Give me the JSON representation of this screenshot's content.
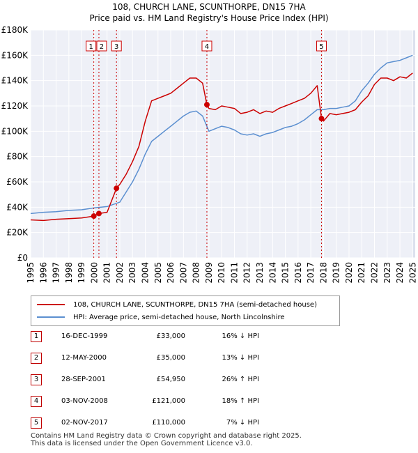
{
  "chart_data": {
    "type": "line",
    "title": "108, CHURCH LANE, SCUNTHORPE, DN15 7HA",
    "subtitle": "Price paid vs. HM Land Registry's House Price Index (HPI)",
    "xlabel": "",
    "ylabel": "",
    "xlim": [
      1995,
      2025.2
    ],
    "ylim": [
      0,
      180000
    ],
    "x_ticks": [
      1995,
      1996,
      1997,
      1998,
      1999,
      2000,
      2001,
      2002,
      2003,
      2004,
      2005,
      2006,
      2007,
      2008,
      2009,
      2010,
      2011,
      2012,
      2013,
      2014,
      2015,
      2016,
      2017,
      2018,
      2019,
      2020,
      2021,
      2022,
      2023,
      2024,
      2025
    ],
    "y_ticks": [
      {
        "value": 0,
        "label": "£0"
      },
      {
        "value": 20000,
        "label": "£20K"
      },
      {
        "value": 40000,
        "label": "£40K"
      },
      {
        "value": 60000,
        "label": "£60K"
      },
      {
        "value": 80000,
        "label": "£80K"
      },
      {
        "value": 100000,
        "label": "£100K"
      },
      {
        "value": 120000,
        "label": "£120K"
      },
      {
        "value": 140000,
        "label": "£140K"
      },
      {
        "value": 160000,
        "label": "£160K"
      },
      {
        "value": 180000,
        "label": "£180K"
      }
    ],
    "grid": true,
    "series": [
      {
        "name": "108, CHURCH LANE, SCUNTHORPE, DN15 7HA (semi-detached house)",
        "color": "#cc0000",
        "x": [
          1995.0,
          1996.0,
          1997.0,
          1998.0,
          1999.0,
          1999.96,
          2000.36,
          2001.0,
          2001.74,
          2002.0,
          2002.5,
          2003.0,
          2003.5,
          2004.0,
          2004.5,
          2005.0,
          2005.5,
          2006.0,
          2006.5,
          2007.0,
          2007.5,
          2008.0,
          2008.5,
          2008.84,
          2009.0,
          2009.5,
          2010.0,
          2010.5,
          2011.0,
          2011.5,
          2012.0,
          2012.5,
          2013.0,
          2013.5,
          2014.0,
          2014.5,
          2015.0,
          2015.5,
          2016.0,
          2016.5,
          2017.0,
          2017.5,
          2017.84,
          2018.0,
          2018.5,
          2019.0,
          2019.5,
          2020.0,
          2020.5,
          2021.0,
          2021.5,
          2022.0,
          2022.5,
          2023.0,
          2023.5,
          2024.0,
          2024.5,
          2025.0
        ],
        "y": [
          30000,
          29500,
          30500,
          31000,
          31500,
          33000,
          35000,
          36000,
          54950,
          58000,
          66000,
          76000,
          88000,
          108000,
          124000,
          126000,
          128000,
          130000,
          134000,
          138000,
          142000,
          142000,
          138000,
          121000,
          118000,
          117000,
          120000,
          119000,
          118000,
          114000,
          115000,
          117000,
          114000,
          116000,
          115000,
          118000,
          120000,
          122000,
          124000,
          126000,
          130000,
          136000,
          110000,
          108000,
          114000,
          113000,
          114000,
          115000,
          117000,
          123000,
          128000,
          137000,
          142000,
          142000,
          140000,
          143000,
          142000,
          146000
        ]
      },
      {
        "name": "HPI: Average price, semi-detached house, North Lincolnshire",
        "color": "#5b8fd0",
        "x": [
          1995.0,
          1996.0,
          1997.0,
          1998.0,
          1999.0,
          2000.0,
          2001.0,
          2002.0,
          2002.5,
          2003.0,
          2003.5,
          2004.0,
          2004.5,
          2005.0,
          2005.5,
          2006.0,
          2006.5,
          2007.0,
          2007.5,
          2008.0,
          2008.5,
          2009.0,
          2009.5,
          2010.0,
          2010.5,
          2011.0,
          2011.5,
          2012.0,
          2012.5,
          2013.0,
          2013.5,
          2014.0,
          2014.5,
          2015.0,
          2015.5,
          2016.0,
          2016.5,
          2017.0,
          2017.5,
          2018.0,
          2018.5,
          2019.0,
          2019.5,
          2020.0,
          2020.5,
          2021.0,
          2021.5,
          2022.0,
          2022.5,
          2023.0,
          2023.5,
          2024.0,
          2024.5,
          2025.0
        ],
        "y": [
          35000,
          36000,
          36500,
          37500,
          38000,
          39500,
          40500,
          44000,
          52000,
          60000,
          70000,
          82000,
          92000,
          96000,
          100000,
          104000,
          108000,
          112000,
          115000,
          116000,
          112000,
          100000,
          102000,
          104000,
          103000,
          101000,
          98000,
          97000,
          98000,
          96000,
          98000,
          99000,
          101000,
          103000,
          104000,
          106000,
          109000,
          113000,
          117000,
          117000,
          118000,
          118000,
          119000,
          120000,
          124000,
          132000,
          138000,
          145000,
          150000,
          154000,
          155000,
          156000,
          158000,
          160000
        ]
      }
    ],
    "sales": [
      {
        "num": "1",
        "date": "16-DEC-1999",
        "x": 1999.96,
        "y": 33000,
        "price": "£33,000",
        "hpi": "16% ↓ HPI"
      },
      {
        "num": "2",
        "date": "12-MAY-2000",
        "x": 2000.36,
        "y": 35000,
        "price": "£35,000",
        "hpi": "13% ↓ HPI"
      },
      {
        "num": "3",
        "date": "28-SEP-2001",
        "x": 2001.74,
        "y": 54950,
        "price": "£54,950",
        "hpi": "26% ↑ HPI"
      },
      {
        "num": "4",
        "date": "03-NOV-2008",
        "x": 2008.84,
        "y": 121000,
        "price": "£121,000",
        "hpi": "18% ↑ HPI"
      },
      {
        "num": "5",
        "date": "02-NOV-2017",
        "x": 2017.84,
        "y": 110000,
        "price": "£110,000",
        "hpi": "7% ↓ HPI"
      }
    ]
  },
  "legend": {
    "property_label": "108, CHURCH LANE, SCUNTHORPE, DN15 7HA (semi-detached house)",
    "hpi_label": "HPI: Average price, semi-detached house, North Lincolnshire",
    "property_color": "#cc0000",
    "hpi_color": "#5b8fd0"
  },
  "footer": {
    "line1": "Contains HM Land Registry data © Crown copyright and database right 2025.",
    "line2": "This data is licensed under the Open Government Licence v3.0."
  }
}
